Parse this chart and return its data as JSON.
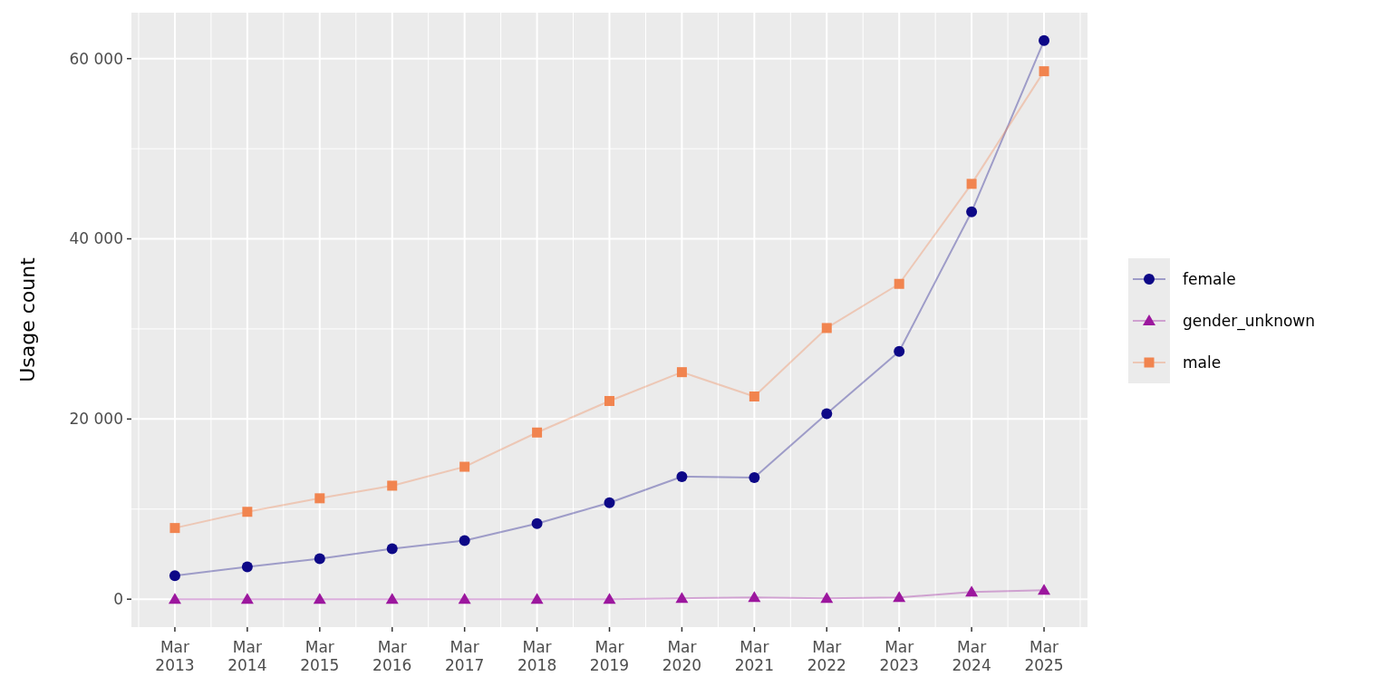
{
  "chart_data": {
    "type": "line",
    "ylabel": "Usage count",
    "categories": [
      "Mar 2013",
      "Mar 2014",
      "Mar 2015",
      "Mar 2016",
      "Mar 2017",
      "Mar 2018",
      "Mar 2019",
      "Mar 2020",
      "Mar 2021",
      "Mar 2022",
      "Mar 2023",
      "Mar 2024",
      "Mar 2025"
    ],
    "series": [
      {
        "name": "female",
        "color": "#0d0887",
        "marker": "circle",
        "values": [
          2600,
          3600,
          4500,
          5600,
          6500,
          8400,
          10700,
          13600,
          13500,
          20600,
          27500,
          43000,
          62000
        ]
      },
      {
        "name": "gender_unknown",
        "color": "#9c179e",
        "marker": "triangle",
        "values": [
          0,
          0,
          0,
          0,
          0,
          0,
          0,
          100,
          200,
          100,
          200,
          800,
          1000
        ]
      },
      {
        "name": "male",
        "color": "#f1844f",
        "marker": "square",
        "values": [
          7900,
          9700,
          11200,
          12600,
          14700,
          18500,
          22000,
          25200,
          22500,
          30100,
          35000,
          46100,
          58600
        ]
      }
    ],
    "ylim": [
      -3100,
      65100
    ],
    "yticks": [
      {
        "value": 0,
        "label": "0"
      },
      {
        "value": 20000,
        "label": "20 000"
      },
      {
        "value": 40000,
        "label": "40 000"
      },
      {
        "value": 60000,
        "label": "60 000"
      }
    ],
    "grid": true,
    "legend": "right",
    "line_style": "solid"
  }
}
